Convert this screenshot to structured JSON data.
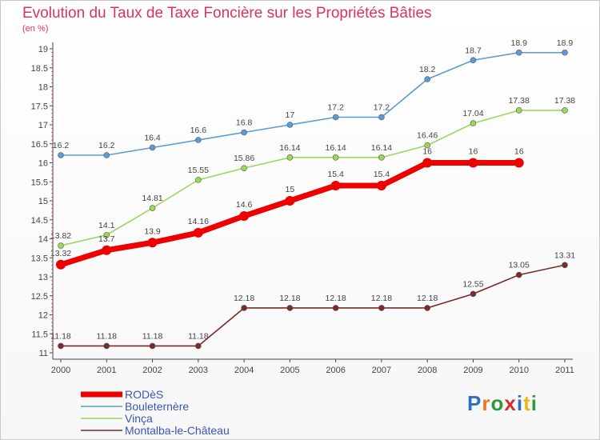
{
  "chart_data": {
    "type": "line",
    "title": "Evolution du Taux de Taxe Foncière sur les Propriétés Bâties",
    "subtitle": "(en %)",
    "xlabel": "",
    "ylabel": "",
    "x": [
      "2000",
      "2001",
      "2002",
      "2003",
      "2004",
      "2005",
      "2006",
      "2007",
      "2008",
      "2009",
      "2010",
      "2011"
    ],
    "ylim": [
      11,
      19
    ],
    "yticks": [
      "11",
      "11.5",
      "12",
      "12.5",
      "13",
      "13.5",
      "14",
      "14.5",
      "15",
      "15.5",
      "16",
      "16.5",
      "17",
      "17.5",
      "18",
      "18.5",
      "19"
    ],
    "grid": false,
    "legend_position": "bottom-left",
    "series": [
      {
        "name": "RODèS",
        "color": "#ee0000",
        "values": [
          13.32,
          13.7,
          13.9,
          14.16,
          14.6,
          15,
          15.4,
          15.4,
          16,
          16,
          16,
          null
        ],
        "labels": [
          "13.32",
          "13.7",
          "13.9",
          "14.16",
          "14.6",
          "15",
          "15.4",
          "15.4",
          "16",
          "16",
          "16",
          ""
        ]
      },
      {
        "name": "Bouleternère",
        "color": "#5b9bd5",
        "values": [
          16.2,
          16.2,
          16.4,
          16.6,
          16.8,
          17,
          17.2,
          17.2,
          18.2,
          18.7,
          18.9,
          18.9
        ],
        "labels": [
          "16.2",
          "16.2",
          "16.4",
          "16.6",
          "16.8",
          "17",
          "17.2",
          "17.2",
          "18.2",
          "18.7",
          "18.9",
          "18.9"
        ]
      },
      {
        "name": "Vinça",
        "color": "#9ad85a",
        "values": [
          13.82,
          14.1,
          14.81,
          15.55,
          15.86,
          16.14,
          16.14,
          16.14,
          16.46,
          17.04,
          17.38,
          17.38
        ],
        "labels": [
          "13.82",
          "14.1",
          "14.81",
          "15.55",
          "15.86",
          "16.14",
          "16.14",
          "16.14",
          "16.46",
          "17.04",
          "17.38",
          "17.38"
        ]
      },
      {
        "name": "Montalba-le-Château",
        "color": "#7a2a2a",
        "values": [
          11.18,
          11.18,
          11.18,
          11.18,
          12.18,
          12.18,
          12.18,
          12.18,
          12.18,
          12.55,
          13.05,
          13.31
        ],
        "labels": [
          "11.18",
          "11.18",
          "11.18",
          "11.18",
          "12.18",
          "12.18",
          "12.18",
          "12.18",
          "12.18",
          "12.55",
          "13.05",
          "13.31"
        ]
      }
    ]
  },
  "logo": {
    "letters": [
      "P",
      "r",
      "o",
      "x",
      "i",
      "t",
      "i"
    ],
    "colors": [
      "#2e6fc0",
      "#e87a1e",
      "#2e9a3a",
      "#d62c2c",
      "#2e6fc0",
      "#e8b51e",
      "#2e9a3a"
    ]
  }
}
